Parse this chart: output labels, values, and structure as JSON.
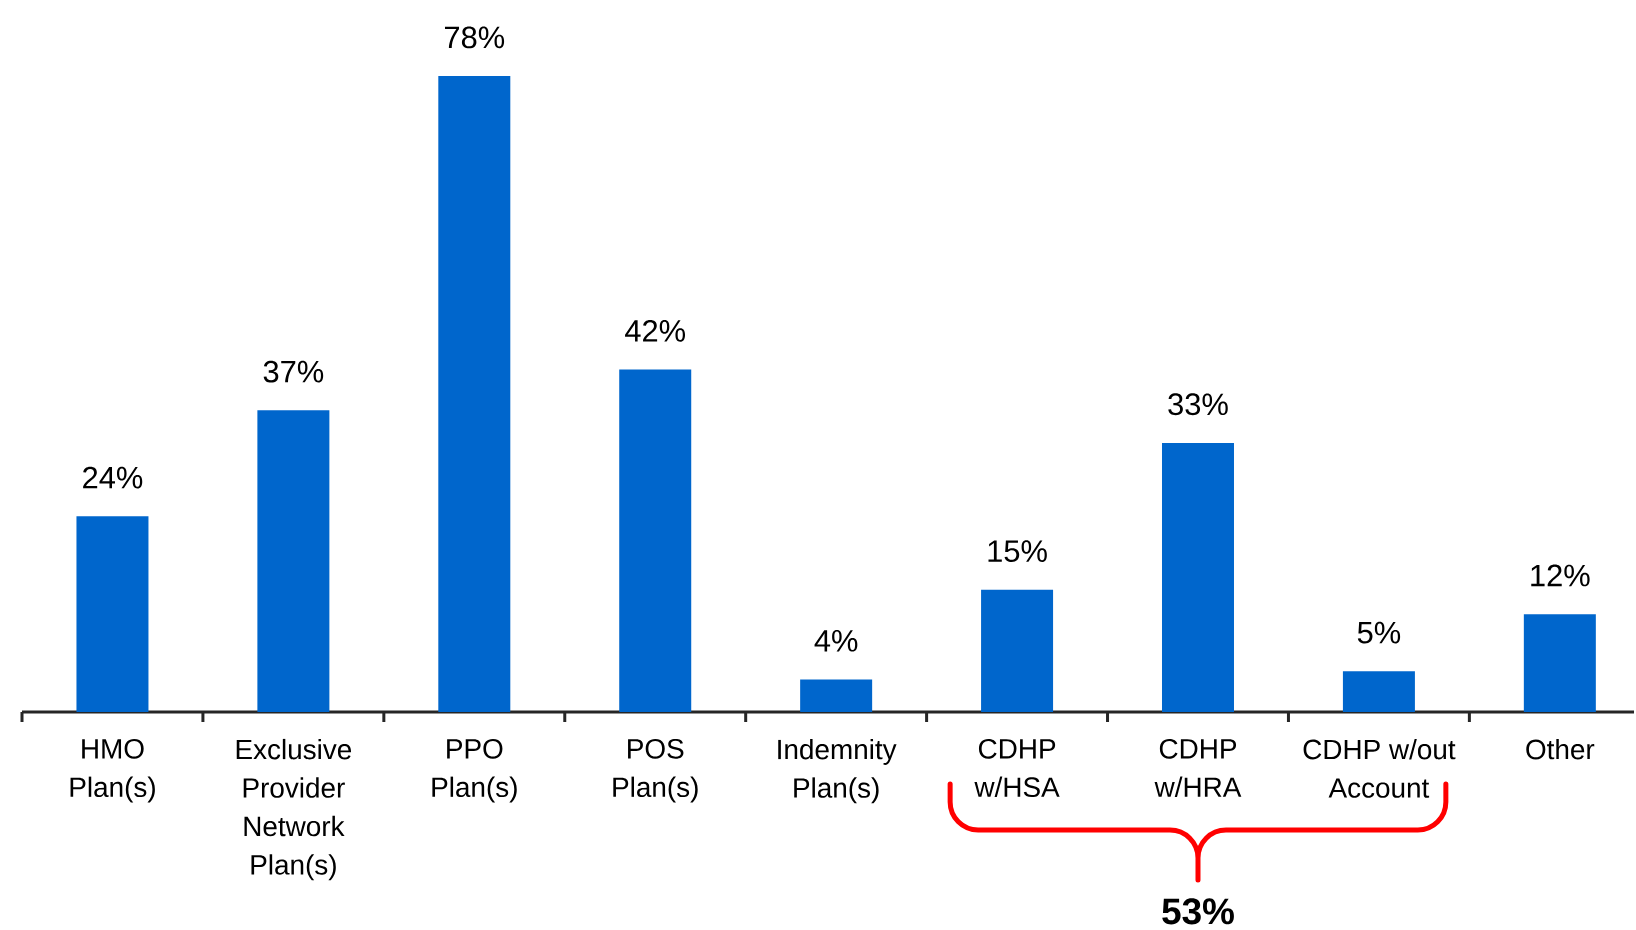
{
  "chart_data": {
    "type": "bar",
    "categories": [
      "HMO Plan(s)",
      "Exclusive Provider Network Plan(s)",
      "PPO Plan(s)",
      "POS Plan(s)",
      "Indemnity Plan(s)",
      "CDHP w/HSA",
      "CDHP w/HRA",
      "CDHP w/out Account",
      "Other"
    ],
    "values": [
      24,
      37,
      78,
      42,
      4,
      15,
      33,
      5,
      12
    ],
    "value_labels": [
      "24%",
      "37%",
      "78%",
      "42%",
      "4%",
      "15%",
      "33%",
      "5%",
      "12%"
    ],
    "color": "#0066cc",
    "tick_labels": "x",
    "annotations": [
      "53%"
    ]
  }
}
